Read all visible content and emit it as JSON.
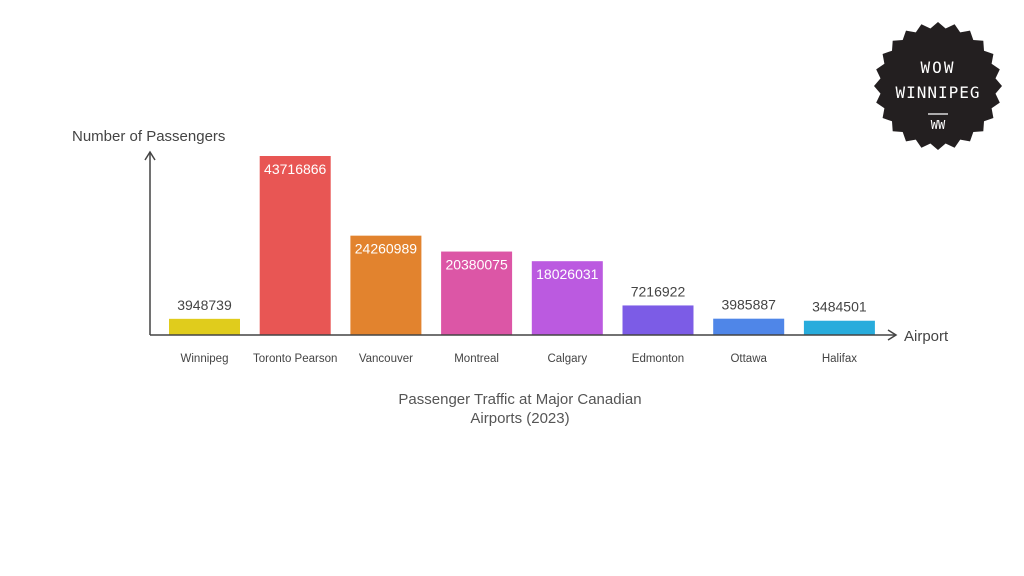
{
  "chart_data": {
    "type": "bar",
    "title": "Passenger Traffic at Major Canadian Airports (2023)",
    "title_lines": [
      "Passenger Traffic at Major Canadian",
      "Airports (2023)"
    ],
    "xlabel": "Airport",
    "ylabel": "Number of Passengers",
    "categories": [
      "Winnipeg",
      "Toronto Pearson",
      "Vancouver",
      "Montreal",
      "Calgary",
      "Edmonton",
      "Ottawa",
      "Halifax"
    ],
    "values": [
      3948739,
      43716866,
      24260989,
      20380075,
      18026031,
      7216922,
      3985887,
      3484501
    ],
    "colors": [
      "#e0cc1c",
      "#e85654",
      "#e2832e",
      "#dc56a6",
      "#bb5ae0",
      "#7c5ce6",
      "#4f86e8",
      "#28acdc"
    ],
    "grid": false,
    "legend": "none"
  },
  "badge": {
    "line1": "WOW",
    "line2": "WINNIPEG",
    "monogram": "WW"
  }
}
